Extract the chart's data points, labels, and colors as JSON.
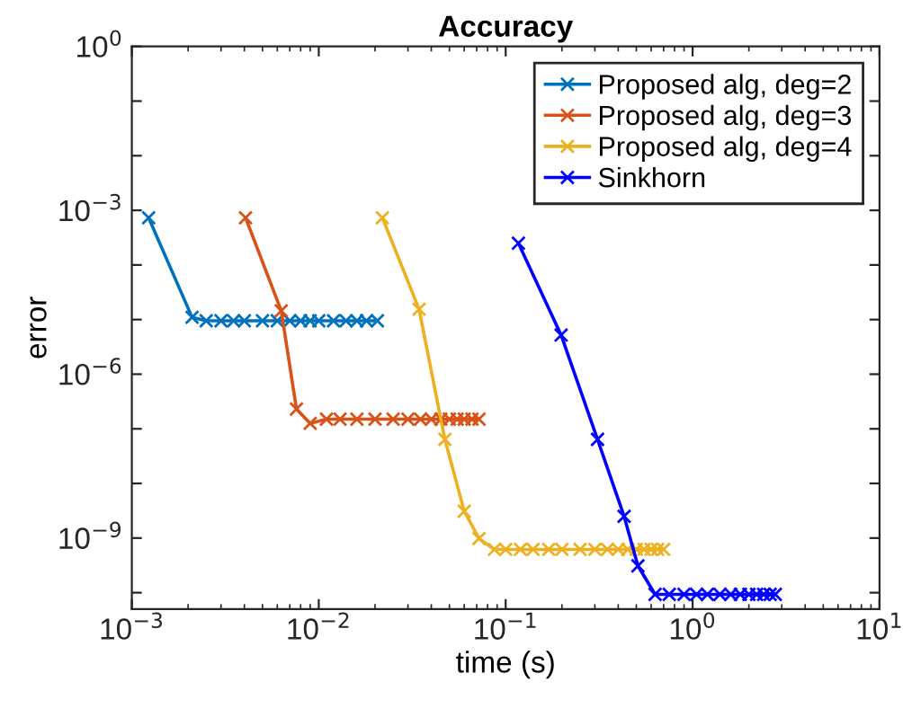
{
  "chart_data": {
    "type": "line",
    "title": "Accuracy",
    "xlabel": "time (s)",
    "ylabel": "error",
    "log": "xy",
    "marker": "cross",
    "line_style": "solid",
    "legend": "top right",
    "grid": false,
    "xlim": [
      0.001,
      10
    ],
    "xticks": [
      {
        "value": 0.001,
        "label": "10$^{−3}$"
      },
      {
        "value": 0.01,
        "label": "10$^{−2}$"
      },
      {
        "value": 0.1,
        "label": "10$^{−1}$"
      },
      {
        "value": 1,
        "label": "10$^{0}$"
      },
      {
        "value": 10,
        "label": "10$^{1}$"
      }
    ],
    "ylim": [
      5e-11,
      1
    ],
    "yticks": [
      {
        "value": 1,
        "label": "10$^{0}$"
      },
      {
        "value": 0.1,
        "label": null
      },
      {
        "value": 0.01,
        "label": null
      },
      {
        "value": 0.001,
        "label": "10$^{−3}$"
      },
      {
        "value": 0.0001,
        "label": null
      },
      {
        "value": 1e-05,
        "label": null
      },
      {
        "value": 1e-06,
        "label": "10$^{−6}$"
      },
      {
        "value": 1e-07,
        "label": null
      },
      {
        "value": 1e-08,
        "label": null
      },
      {
        "value": 1e-09,
        "label": "10$^{−9}$"
      },
      {
        "value": 1e-10,
        "label": null
      }
    ],
    "series": [
      {
        "name": "Proposed alg, deg=2",
        "color": "#0072bd",
        "x": [
          0.00123,
          0.0021,
          0.0025,
          0.003,
          0.0035,
          0.004,
          0.005,
          0.006,
          0.007,
          0.008,
          0.009,
          0.01,
          0.012,
          0.014,
          0.016,
          0.018,
          0.0206
        ],
        "values": [
          0.00073,
          1.1e-05,
          9.5e-06,
          9.5e-06,
          9.5e-06,
          9.5e-06,
          9.5e-06,
          9.5e-06,
          9.5e-06,
          9.5e-06,
          9.5e-06,
          9.5e-06,
          9.5e-06,
          9.5e-06,
          9.5e-06,
          9.5e-06,
          9.5e-06
        ]
      },
      {
        "name": "Proposed alg, deg=3",
        "color": "#d95319",
        "x": [
          0.00406,
          0.0063,
          0.0076,
          0.009,
          0.011,
          0.013,
          0.016,
          0.02,
          0.025,
          0.03,
          0.035,
          0.04,
          0.045,
          0.05,
          0.055,
          0.06,
          0.066,
          0.072
        ],
        "values": [
          0.00073,
          1.45e-05,
          2.3e-07,
          1.26e-07,
          1.5e-07,
          1.5e-07,
          1.5e-07,
          1.5e-07,
          1.5e-07,
          1.5e-07,
          1.5e-07,
          1.5e-07,
          1.5e-07,
          1.5e-07,
          1.5e-07,
          1.5e-07,
          1.5e-07,
          1.5e-07
        ]
      },
      {
        "name": "Proposed alg, deg=4",
        "color": "#edb120",
        "x": [
          0.0219,
          0.0344,
          0.0473,
          0.06,
          0.072,
          0.087,
          0.1,
          0.12,
          0.14,
          0.17,
          0.2,
          0.25,
          0.3,
          0.35,
          0.4,
          0.45,
          0.5,
          0.55,
          0.6,
          0.65,
          0.7
        ],
        "values": [
          0.00073,
          1.55e-05,
          6.4e-08,
          3.1e-09,
          9.8e-10,
          6.2e-10,
          6.2e-10,
          6.2e-10,
          6.2e-10,
          6.2e-10,
          6.2e-10,
          6.2e-10,
          6.2e-10,
          6.2e-10,
          6.2e-10,
          6.2e-10,
          6.2e-10,
          6.2e-10,
          6.2e-10,
          6.2e-10,
          6.2e-10
        ]
      },
      {
        "name": "Sinkhorn",
        "color": "#0000ff",
        "x": [
          0.117,
          0.198,
          0.31,
          0.43,
          0.51,
          0.63,
          0.75,
          0.9,
          1.05,
          1.2,
          1.4,
          1.6,
          1.8,
          2.0,
          2.2,
          2.4,
          2.6,
          2.77
        ],
        "values": [
          0.00025,
          5.2e-06,
          6.4e-08,
          2.5e-09,
          3.1e-10,
          9.3e-11,
          9.3e-11,
          9.3e-11,
          9.3e-11,
          9.3e-11,
          9.3e-11,
          9.3e-11,
          9.3e-11,
          9.3e-11,
          9.3e-11,
          9.3e-11,
          9.3e-11,
          9.3e-11
        ]
      }
    ]
  }
}
